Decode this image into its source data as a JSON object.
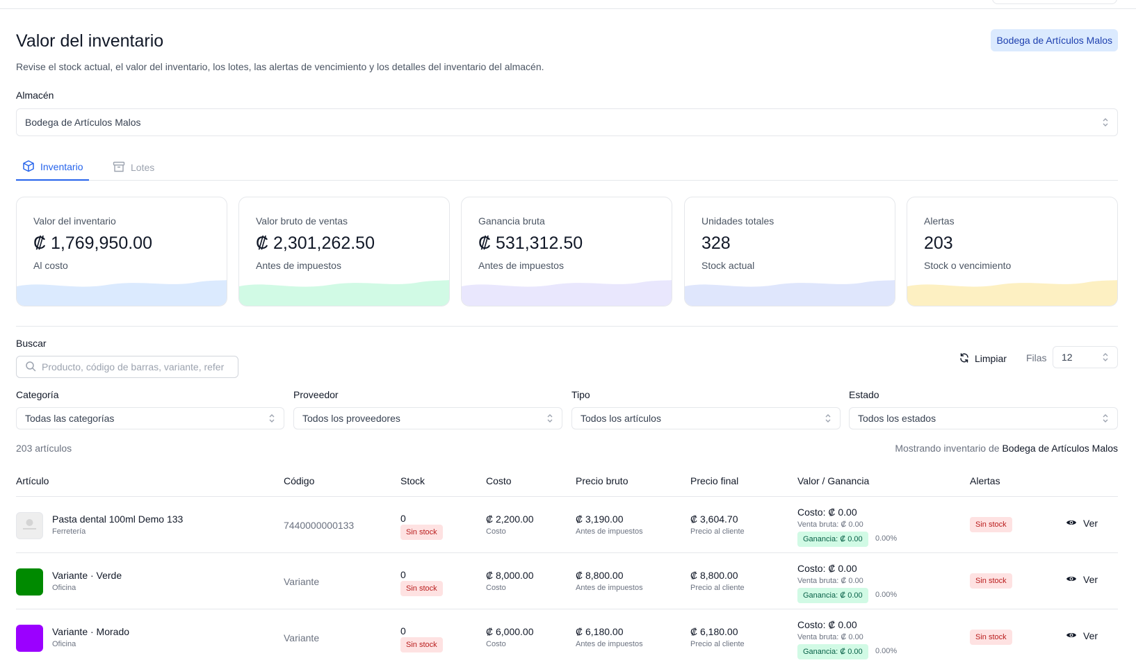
{
  "header": {
    "title": "Valor del inventario",
    "subtitle": "Revise el stock actual, el valor del inventario, los lotes, las alertas de vencimiento y los detalles del inventario del almacén.",
    "warehouse_badge": "Bodega de Artículos Malos"
  },
  "warehouse": {
    "label": "Almacén",
    "value": "Bodega de Artículos Malos"
  },
  "tabs": [
    {
      "label": "Inventario",
      "active": true,
      "icon": "box-icon"
    },
    {
      "label": "Lotes",
      "active": false,
      "icon": "archive-icon"
    }
  ],
  "cards": [
    {
      "label": "Valor del inventario",
      "value": "₡ 1,769,950.00",
      "sub": "Al costo",
      "color": "#dbeafe"
    },
    {
      "label": "Valor bruto de ventas",
      "value": "₡ 2,301,262.50",
      "sub": "Antes de impuestos",
      "color": "#d1fae5"
    },
    {
      "label": "Ganancia bruta",
      "value": "₡ 531,312.50",
      "sub": "Antes de impuestos",
      "color": "#e9e7fd"
    },
    {
      "label": "Unidades totales",
      "value": "328",
      "sub": "Stock actual",
      "color": "#dfe6fc"
    },
    {
      "label": "Alertas",
      "value": "203",
      "sub": "Stock o vencimiento",
      "color": "#fdf0c2"
    }
  ],
  "search": {
    "label": "Buscar",
    "placeholder": "Producto, código de barras, variante, refer"
  },
  "toolbar": {
    "clear_label": "Limpiar",
    "rows_label": "Filas",
    "rows_value": "12"
  },
  "filters": [
    {
      "label": "Categoría",
      "value": "Todas las categorías"
    },
    {
      "label": "Proveedor",
      "value": "Todos los proveedores"
    },
    {
      "label": "Tipo",
      "value": "Todos los artículos"
    },
    {
      "label": "Estado",
      "value": "Todos los estados"
    }
  ],
  "summary": {
    "count": "203 artículos",
    "showing_prefix": "Mostrando inventario de",
    "showing_warehouse": "Bodega de Artículos Malos"
  },
  "table": {
    "columns": [
      "Artículo",
      "Código",
      "Stock",
      "Costo",
      "Precio bruto",
      "Precio final",
      "Valor / Ganancia",
      "Alertas"
    ],
    "rows": [
      {
        "name": "Pasta dental 100ml Demo 133",
        "category": "Ferretería",
        "thumb": "image",
        "thumb_color": "#eeeeee",
        "code": "7440000000133",
        "stock": "0",
        "stock_badge": "Sin stock",
        "cost": "₡ 2,200.00",
        "cost_sub": "Costo",
        "gross": "₡ 3,190.00",
        "gross_sub": "Antes de impuestos",
        "final": "₡ 3,604.70",
        "final_sub": "Precio al cliente",
        "vg_cost": "Costo: ₡ 0.00",
        "vg_gross": "Venta bruta: ₡ 0.00",
        "vg_gain": "Ganancia: ₡ 0.00",
        "vg_pct": "0.00%",
        "alert": "Sin stock",
        "action": "Ver"
      },
      {
        "name": "Variante · Verde",
        "category": "Oficina",
        "thumb": "color",
        "thumb_color": "#008a00",
        "code": "Variante",
        "stock": "0",
        "stock_badge": "Sin stock",
        "cost": "₡ 8,000.00",
        "cost_sub": "Costo",
        "gross": "₡ 8,800.00",
        "gross_sub": "Antes de impuestos",
        "final": "₡ 8,800.00",
        "final_sub": "Precio al cliente",
        "vg_cost": "Costo: ₡ 0.00",
        "vg_gross": "Venta bruta: ₡ 0.00",
        "vg_gain": "Ganancia: ₡ 0.00",
        "vg_pct": "0.00%",
        "alert": "Sin stock",
        "action": "Ver"
      },
      {
        "name": "Variante · Morado",
        "category": "Oficina",
        "thumb": "color",
        "thumb_color": "#9b00ff",
        "code": "Variante",
        "stock": "0",
        "stock_badge": "Sin stock",
        "cost": "₡ 6,000.00",
        "cost_sub": "Costo",
        "gross": "₡ 6,180.00",
        "gross_sub": "Antes de impuestos",
        "final": "₡ 6,180.00",
        "final_sub": "Precio al cliente",
        "vg_cost": "Costo: ₡ 0.00",
        "vg_gross": "Venta bruta: ₡ 0.00",
        "vg_gain": "Ganancia: ₡ 0.00",
        "vg_pct": "0.00%",
        "alert": "Sin stock",
        "action": "Ver"
      }
    ]
  }
}
